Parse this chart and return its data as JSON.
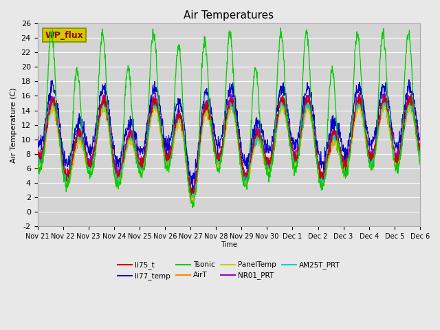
{
  "title": "Air Temperatures",
  "ylabel": "Air Temperature (C)",
  "xlabel": "Time",
  "ylim": [
    -2,
    26
  ],
  "yticks": [
    -2,
    0,
    2,
    4,
    6,
    8,
    10,
    12,
    14,
    16,
    18,
    20,
    22,
    24,
    26
  ],
  "xtick_labels": [
    "Nov 21",
    "Nov 22",
    "Nov 23",
    "Nov 24",
    "Nov 25",
    "Nov 26",
    "Nov 27",
    "Nov 28",
    "Nov 29",
    "Nov 30",
    "Dec 1",
    "Dec 2",
    "Dec 3",
    "Dec 4",
    "Dec 5",
    "Dec 6"
  ],
  "series_colors": {
    "li75_t": "#cc0000",
    "li77_temp": "#0000cc",
    "Tsonic": "#00cc00",
    "AirT": "#ff8800",
    "PanelTemp": "#cccc00",
    "NR01_PRT": "#9900cc",
    "AM25T_PRT": "#00cccc"
  },
  "background_color": "#e8e8e8",
  "plot_bg_color": "#d4d4d4",
  "wp_flux_box_color": "#cccc00",
  "wp_flux_text_color": "#990000",
  "seed": 42
}
